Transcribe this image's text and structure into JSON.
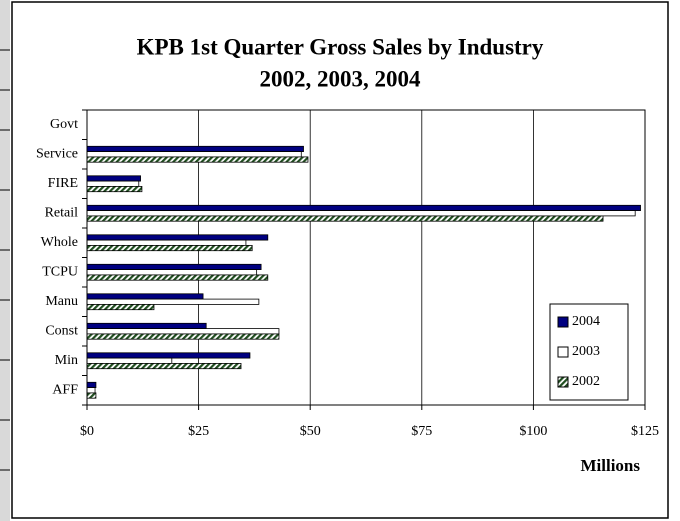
{
  "chart_data": {
    "type": "barh",
    "title": [
      "KPB 1st Quarter Gross Sales by Industry",
      "2002, 2003, 2004"
    ],
    "x_label": "Millions",
    "categories": [
      "Govt",
      "Service",
      "FIRE",
      "Retail",
      "Whole",
      "TCPU",
      "Manu",
      "Const",
      "Min",
      "AFF"
    ],
    "series": [
      {
        "name": "2004",
        "color": "#000080",
        "values": [
          0,
          48.5,
          12,
          124,
          40.5,
          39,
          26,
          26.7,
          36.5,
          2
        ]
      },
      {
        "name": "2003",
        "color": "#ffffff",
        "values": [
          0,
          48,
          11.6,
          122.8,
          35.6,
          38,
          38.5,
          43,
          19,
          1.8
        ]
      },
      {
        "name": "2002",
        "color": "#1f4d1f",
        "pattern": "hatch",
        "values": [
          0,
          49.5,
          12.3,
          115.6,
          37,
          40.5,
          15,
          43,
          34.5,
          2
        ]
      }
    ],
    "xlim": [
      0,
      125
    ],
    "xticks": [
      {
        "value": 0,
        "label": "$0"
      },
      {
        "value": 25,
        "label": "$25"
      },
      {
        "value": 50,
        "label": "$50"
      },
      {
        "value": 75,
        "label": "$75"
      },
      {
        "value": 100,
        "label": "$100"
      },
      {
        "value": 125,
        "label": "$125"
      }
    ],
    "grid": true,
    "legend": "lower right"
  }
}
